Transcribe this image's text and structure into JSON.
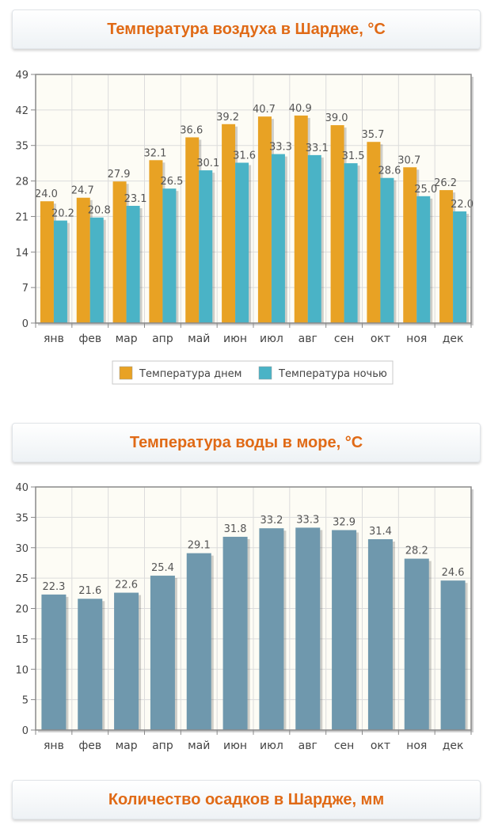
{
  "sections": {
    "air_title": "Температура воздуха в Шардже, °C",
    "water_title": "Температура воды в море, °C",
    "precip_title": "Количество осадков в Шардже, мм"
  },
  "colors": {
    "day": "#e8a224",
    "night": "#4ab3c6",
    "water": "#6f98ad",
    "title": "#e06a16"
  },
  "chart_data": [
    {
      "type": "bar",
      "categories": [
        "янв",
        "фев",
        "мар",
        "апр",
        "май",
        "июн",
        "июл",
        "авг",
        "сен",
        "окт",
        "ноя",
        "дек"
      ],
      "series": [
        {
          "name": "Температура днем",
          "values": [
            24.0,
            24.7,
            27.9,
            32.1,
            36.6,
            39.2,
            40.7,
            40.9,
            39.0,
            35.7,
            30.7,
            26.2
          ]
        },
        {
          "name": "Температура ночью",
          "values": [
            20.2,
            20.8,
            23.1,
            26.5,
            30.1,
            31.6,
            33.3,
            33.1,
            31.5,
            28.6,
            25.0,
            22.0
          ]
        }
      ],
      "yticks": [
        0,
        7,
        14,
        21,
        28,
        35,
        42,
        49
      ],
      "ylim": [
        0,
        49
      ],
      "grid": true,
      "legend": "bottom"
    },
    {
      "type": "bar",
      "categories": [
        "янв",
        "фев",
        "мар",
        "апр",
        "май",
        "июн",
        "июл",
        "авг",
        "сен",
        "окт",
        "ноя",
        "дек"
      ],
      "values": [
        22.3,
        21.6,
        22.6,
        25.4,
        29.1,
        31.8,
        33.2,
        33.3,
        32.9,
        31.4,
        28.2,
        24.6
      ],
      "yticks": [
        0,
        5,
        10,
        15,
        20,
        25,
        30,
        35,
        40
      ],
      "ylim": [
        0,
        40
      ],
      "grid": true
    }
  ]
}
